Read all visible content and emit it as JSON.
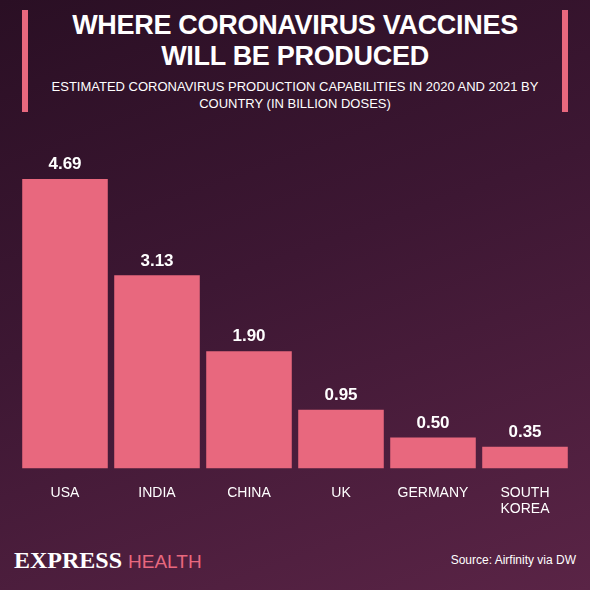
{
  "chart_data": {
    "type": "bar",
    "title": "WHERE CORONAVIRUS VACCINES WILL BE PRODUCED",
    "subtitle": "ESTIMATED CORONAVIRUS PRODUCTION CAPABILITIES IN 2020 AND 2021 BY COUNTRY (IN BILLION DOSES)",
    "categories": [
      "USA",
      "INDIA",
      "CHINA",
      "UK",
      "GERMANY",
      "SOUTH KOREA"
    ],
    "values": [
      4.69,
      3.13,
      1.9,
      0.95,
      0.5,
      0.35
    ],
    "value_labels": [
      "4.69",
      "3.13",
      "1.90",
      "0.95",
      "0.50",
      "0.35"
    ],
    "color": "#e8687e",
    "ylim": [
      0,
      5
    ],
    "grid": false,
    "data_labels": true,
    "tick_labels": "x"
  },
  "footer": {
    "brand": "EXPRESS",
    "section": "HEALTH",
    "source": "Source: Airfinity via DW"
  }
}
